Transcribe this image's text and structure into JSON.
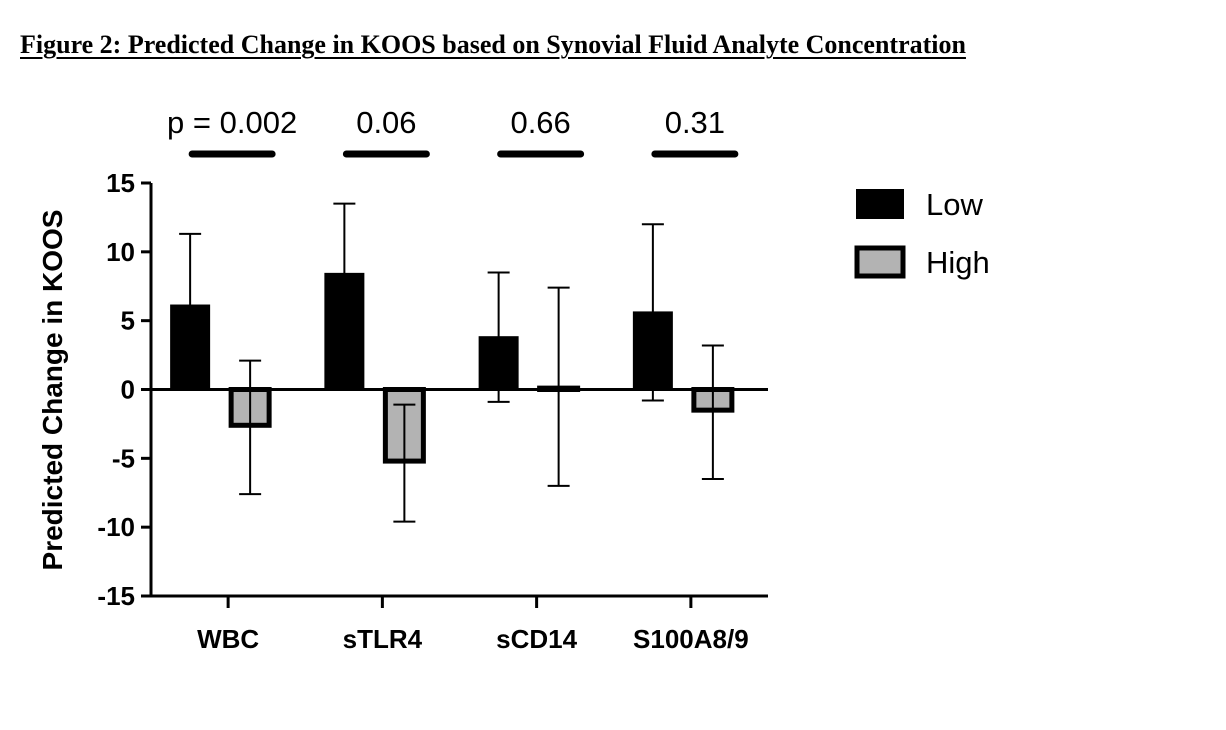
{
  "figure_title": "Figure 2: Predicted Change in KOOS based on Synovial Fluid Analyte Concentration",
  "chart_data": {
    "type": "bar",
    "ylabel": "Predicted Change in KOOS",
    "xlabel": "",
    "ylim": [
      -15,
      15
    ],
    "yticks": [
      15,
      10,
      5,
      0,
      -5,
      -10,
      -15
    ],
    "categories": [
      "WBC",
      "sTLR4",
      "sCD14",
      "S100A8/9"
    ],
    "series": [
      {
        "name": "Low",
        "color": "#000000",
        "values": [
          6.1,
          8.4,
          3.8,
          5.6
        ],
        "error_upper": [
          11.3,
          13.5,
          8.5,
          12.0
        ],
        "error_lower": [
          0,
          0,
          -0.9,
          -0.8
        ]
      },
      {
        "name": "High",
        "color": "#b3b3b3",
        "values": [
          -2.6,
          -5.2,
          0.1,
          -1.5
        ],
        "error_upper": [
          2.1,
          -1.1,
          7.4,
          3.2
        ],
        "error_lower": [
          -7.6,
          -9.6,
          -7.0,
          -6.5
        ]
      }
    ],
    "pvalues": [
      "p = 0.002",
      "0.06",
      "0.66",
      "0.31"
    ],
    "legend_position": "right"
  }
}
